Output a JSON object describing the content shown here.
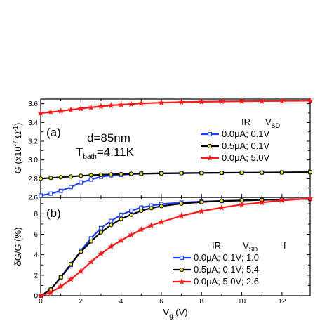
{
  "chart_data": [
    {
      "panel": "a",
      "type": "line",
      "panel_label": "(a)",
      "annotation_lines": [
        "d=85nm",
        "T_bath=4.11K"
      ],
      "ylabel": "G (x10^-7 Ω^-1)",
      "ylim": [
        2.6,
        3.65
      ],
      "yticks": [
        2.6,
        2.8,
        3.0,
        3.2,
        3.4,
        3.6
      ],
      "xlim": [
        0,
        13.4
      ],
      "legend_header": [
        "IR",
        "V_SD"
      ],
      "legend_placement": "right",
      "series": [
        {
          "name": "0.0μA; 0.1V",
          "color": "#1f3fff",
          "marker": "square",
          "x": [
            0,
            0.5,
            1,
            1.5,
            2,
            2.5,
            3,
            3.5,
            4,
            4.5,
            5,
            6,
            7,
            8,
            9,
            10,
            11,
            12,
            13.4
          ],
          "y": [
            2.62,
            2.64,
            2.67,
            2.71,
            2.76,
            2.79,
            2.82,
            2.835,
            2.84,
            2.848,
            2.853,
            2.857,
            2.859,
            2.861,
            2.862,
            2.864,
            2.865,
            2.866,
            2.868
          ]
        },
        {
          "name": "0.5μA; 0.1V",
          "color": "#000000",
          "marker": "circle",
          "x": [
            0,
            0.5,
            1,
            1.5,
            2,
            2.5,
            3,
            3.5,
            4,
            4.5,
            5,
            6,
            7,
            8,
            9,
            10,
            11,
            12,
            13.4
          ],
          "y": [
            2.8,
            2.808,
            2.815,
            2.822,
            2.83,
            2.836,
            2.841,
            2.845,
            2.848,
            2.851,
            2.853,
            2.856,
            2.858,
            2.86,
            2.862,
            2.863,
            2.864,
            2.866,
            2.868
          ]
        },
        {
          "name": "0.0μA; 5.0V",
          "color": "#ff1a1a",
          "marker": "star",
          "x": [
            0,
            0.5,
            1,
            1.5,
            2,
            2.5,
            3,
            3.5,
            4,
            4.5,
            5,
            6,
            7,
            8,
            9,
            10,
            11,
            12,
            13.4
          ],
          "y": [
            3.5,
            3.51,
            3.522,
            3.535,
            3.548,
            3.56,
            3.572,
            3.582,
            3.59,
            3.597,
            3.603,
            3.611,
            3.617,
            3.621,
            3.624,
            3.626,
            3.628,
            3.63,
            3.632
          ]
        }
      ]
    },
    {
      "panel": "b",
      "type": "line",
      "panel_label": "(b)",
      "ylabel": "δG/G (%)",
      "xlabel": "V_g (V)",
      "ylim": [
        0,
        9.6
      ],
      "yticks": [
        0,
        2,
        4,
        6,
        8
      ],
      "xlim": [
        0,
        13.4
      ],
      "xticks": [
        0,
        2,
        4,
        6,
        8,
        10,
        12
      ],
      "legend_header": [
        "IR",
        "V_SD",
        "f"
      ],
      "legend_placement": "bottom-right",
      "series": [
        {
          "name": "0.0μA; 0.1V; 1.0",
          "color": "#1f3fff",
          "marker": "square",
          "x": [
            0,
            0.5,
            1,
            1.5,
            2,
            2.5,
            3,
            3.5,
            4,
            4.5,
            5,
            5.5,
            6,
            7,
            8,
            9,
            10,
            11,
            12,
            13.4
          ],
          "y": [
            0,
            0.6,
            1.8,
            3.0,
            4.4,
            5.6,
            6.6,
            7.3,
            7.9,
            8.3,
            8.6,
            8.8,
            8.95,
            9.1,
            9.2,
            9.25,
            9.3,
            9.35,
            9.4,
            9.45
          ]
        },
        {
          "name": "0.5μA; 0.1V; 5.4",
          "color": "#000000",
          "marker": "circle",
          "x": [
            0,
            0.5,
            1,
            1.5,
            2,
            2.5,
            3,
            3.5,
            4,
            4.5,
            5,
            5.5,
            6,
            7,
            8,
            9,
            10,
            11,
            12,
            13.4
          ],
          "y": [
            0,
            0.6,
            1.8,
            3.1,
            4.3,
            5.3,
            6.2,
            6.9,
            7.5,
            7.9,
            8.3,
            8.55,
            8.75,
            9.0,
            9.15,
            9.25,
            9.3,
            9.35,
            9.4,
            9.45
          ]
        },
        {
          "name": "0.0μA; 5.0V; 2.6",
          "color": "#ff1a1a",
          "marker": "star",
          "x": [
            0,
            0.5,
            1,
            1.5,
            2,
            2.5,
            3,
            3.5,
            4,
            4.5,
            5,
            5.5,
            6,
            7,
            8,
            9,
            10,
            11,
            12,
            13.4
          ],
          "y": [
            0,
            0.3,
            0.9,
            1.6,
            2.4,
            3.3,
            4.1,
            4.8,
            5.4,
            5.95,
            6.45,
            6.85,
            7.2,
            7.8,
            8.25,
            8.6,
            8.9,
            9.1,
            9.3,
            9.5
          ]
        }
      ]
    }
  ]
}
